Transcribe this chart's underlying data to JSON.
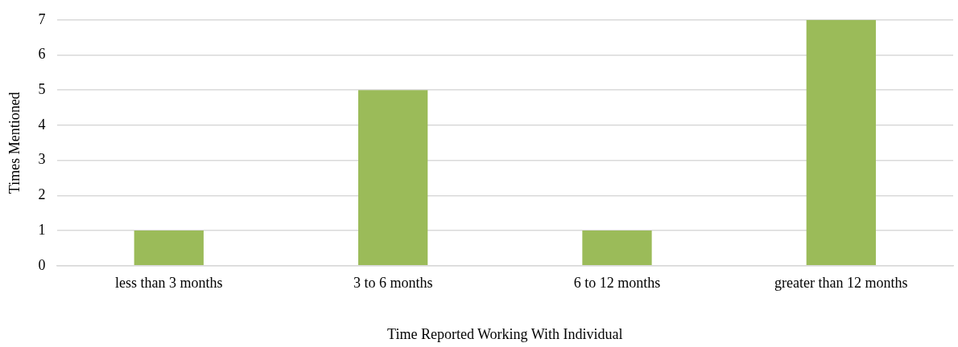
{
  "chart_data": {
    "type": "bar",
    "xlabel": "Time Reported Working With Individual",
    "ylabel": "Times Mentioned",
    "categories": [
      "less than 3 months",
      "3 to 6 months",
      "6 to 12 months",
      "greater than 12 months"
    ],
    "values": [
      1,
      5,
      1,
      7
    ],
    "color": "#9bbb59",
    "ylim": [
      0,
      7
    ],
    "yticks": [
      0,
      1,
      2,
      3,
      4,
      5,
      6,
      7
    ],
    "grid": "y",
    "legend": false
  }
}
